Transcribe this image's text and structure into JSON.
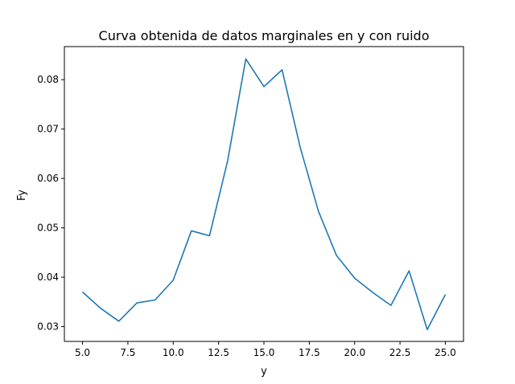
{
  "chart_data": {
    "type": "line",
    "title": "Curva obtenida de datos marginales en y con ruido",
    "xlabel": "y",
    "ylabel": "Fy",
    "xlim": [
      4.0,
      26.0
    ],
    "ylim": [
      0.027,
      0.0867
    ],
    "x_ticks": [
      "5.0",
      "7.5",
      "10.0",
      "12.5",
      "15.0",
      "17.5",
      "20.0",
      "22.5",
      "25.0"
    ],
    "y_ticks": [
      "0.03",
      "0.04",
      "0.05",
      "0.06",
      "0.07",
      "0.08"
    ],
    "grid": false,
    "line_color": "#1f77b4",
    "series": [
      {
        "x": [
          5,
          6,
          7,
          8,
          9,
          10,
          11,
          12,
          13,
          14,
          15,
          16,
          17,
          18,
          19,
          20,
          21,
          22,
          23,
          24,
          25
        ],
        "y": [
          0.037,
          0.0337,
          0.0311,
          0.0348,
          0.0354,
          0.0394,
          0.0494,
          0.0484,
          0.0636,
          0.0842,
          0.0786,
          0.082,
          0.0663,
          0.0534,
          0.0444,
          0.0398,
          0.0369,
          0.0343,
          0.0413,
          0.0294,
          0.0365
        ]
      }
    ]
  }
}
